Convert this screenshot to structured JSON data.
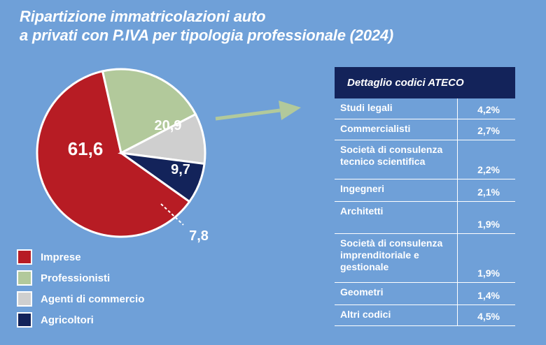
{
  "title": {
    "line1": "Ripartizione immatricolazioni auto",
    "line2": "a privati con P.IVA per tipologia professionale (2024)"
  },
  "chart_data": {
    "type": "pie",
    "title": "Ripartizione immatricolazioni auto a privati con P.IVA per tipologia professionale (2024)",
    "slices": [
      {
        "name": "Imprese",
        "value": 61.6,
        "label": "61,6",
        "color": "#b71c24"
      },
      {
        "name": "Professionisti",
        "value": 20.9,
        "label": "20,9",
        "color": "#b2c99b"
      },
      {
        "name": "Agenti di commercio",
        "value": 9.7,
        "label": "9,7",
        "color": "#cfcfcf"
      },
      {
        "name": "Agricoltori",
        "value": 7.8,
        "label": "7,8",
        "color": "#13235a"
      }
    ],
    "legend_position": "bottom-left"
  },
  "table": {
    "header": "Dettaglio codici ATECO",
    "rows": [
      {
        "label": "Studi legali",
        "value": "4,2%"
      },
      {
        "label": "Commercialisti",
        "value": "2,7%"
      },
      {
        "label": "Società di consulenza tecnico scientifica",
        "value": "2,2%"
      },
      {
        "label": "Ingegneri",
        "value": "2,1%"
      },
      {
        "label": "Architetti",
        "value": "1,9%"
      },
      {
        "label": "Società di consulenza imprenditoriale e gestionale",
        "value": "1,9%"
      },
      {
        "label": "Geometri",
        "value": "1,4%"
      },
      {
        "label": "Altri codici",
        "value": "4,5%"
      }
    ]
  },
  "colors": {
    "background": "#6fa0d8",
    "header_bg": "#13235a",
    "arrow": "#b2c99b"
  }
}
